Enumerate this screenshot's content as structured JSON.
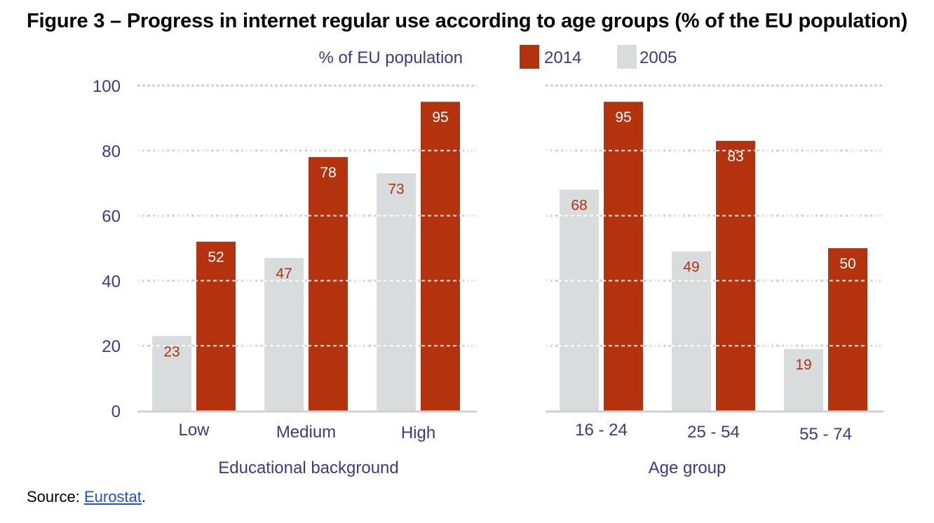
{
  "title": "Figure 3 – Progress in internet regular use according to age groups (% of the EU population)",
  "source_label": "Source:",
  "source_link": "Eurostat",
  "source_suffix": ".",
  "colors": {
    "2014": "#b5320e",
    "2005": "#d9dcdc",
    "axis_text": "#3d3a85",
    "grid": "#d0d0d0",
    "inner_dash": "#ffffff"
  },
  "chart_data": {
    "type": "bar",
    "ylabel": "% of EU population",
    "ylim": [
      0,
      100
    ],
    "yticks": [
      0,
      20,
      40,
      60,
      80,
      100
    ],
    "legend": [
      "2014",
      "2005"
    ],
    "legend_placement": "top",
    "grid": true,
    "panels": [
      {
        "xlabel": "Educational background",
        "categories": [
          "Low",
          "Medium",
          "High"
        ],
        "series": [
          {
            "name": "2005",
            "values": [
              23,
              47,
              73
            ]
          },
          {
            "name": "2014",
            "values": [
              52,
              78,
              95
            ]
          }
        ]
      },
      {
        "xlabel": "Age group",
        "categories": [
          "16 - 24",
          "25 - 54",
          "55 - 74"
        ],
        "series": [
          {
            "name": "2005",
            "values": [
              68,
              49,
              19
            ]
          },
          {
            "name": "2014",
            "values": [
              95,
              83,
              50
            ]
          }
        ]
      }
    ]
  }
}
